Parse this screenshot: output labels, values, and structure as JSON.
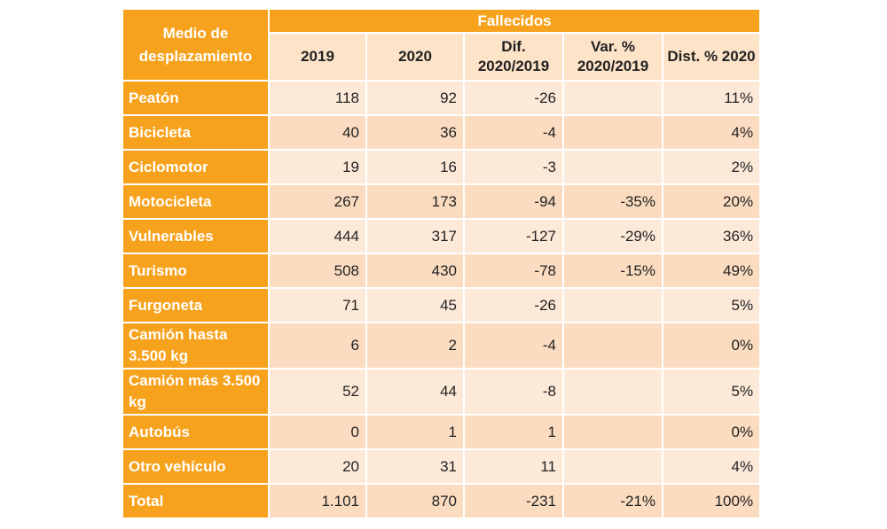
{
  "header": {
    "corner": "Medio de desplazamiento",
    "group": "Fallecidos",
    "columns": [
      "2019",
      "2020",
      "Dif. 2020/2019",
      "Var. % 2020/2019",
      "Dist. % 2020"
    ]
  },
  "rows": [
    {
      "label": "Peatón",
      "values": [
        "118",
        "92",
        "-26",
        "",
        "11%"
      ]
    },
    {
      "label": "Bicicleta",
      "values": [
        "40",
        "36",
        "-4",
        "",
        "4%"
      ]
    },
    {
      "label": "Ciclomotor",
      "values": [
        "19",
        "16",
        "-3",
        "",
        "2%"
      ]
    },
    {
      "label": "Motocicleta",
      "values": [
        "267",
        "173",
        "-94",
        "-35%",
        "20%"
      ]
    },
    {
      "label": "Vulnerables",
      "values": [
        "444",
        "317",
        "-127",
        "-29%",
        "36%"
      ]
    },
    {
      "label": "Turismo",
      "values": [
        "508",
        "430",
        "-78",
        "-15%",
        "49%"
      ]
    },
    {
      "label": "Furgoneta",
      "values": [
        "71",
        "45",
        "-26",
        "",
        "5%"
      ]
    },
    {
      "label": "Camión hasta 3.500 kg",
      "values": [
        "6",
        "2",
        "-4",
        "",
        "0%"
      ]
    },
    {
      "label": "Camión más 3.500 kg",
      "values": [
        "52",
        "44",
        "-8",
        "",
        "5%"
      ]
    },
    {
      "label": "Autobús",
      "values": [
        "0",
        "1",
        "1",
        "",
        "0%"
      ]
    },
    {
      "label": "Otro vehículo",
      "values": [
        "20",
        "31",
        "11",
        "",
        "4%"
      ]
    },
    {
      "label": "Total",
      "values": [
        "1.101",
        "870",
        "-231",
        "-21%",
        "100%"
      ]
    }
  ],
  "colors": {
    "header_orange": "#f7a21c",
    "row_light": "#fde9d8",
    "row_dark": "#fbdcc0"
  }
}
